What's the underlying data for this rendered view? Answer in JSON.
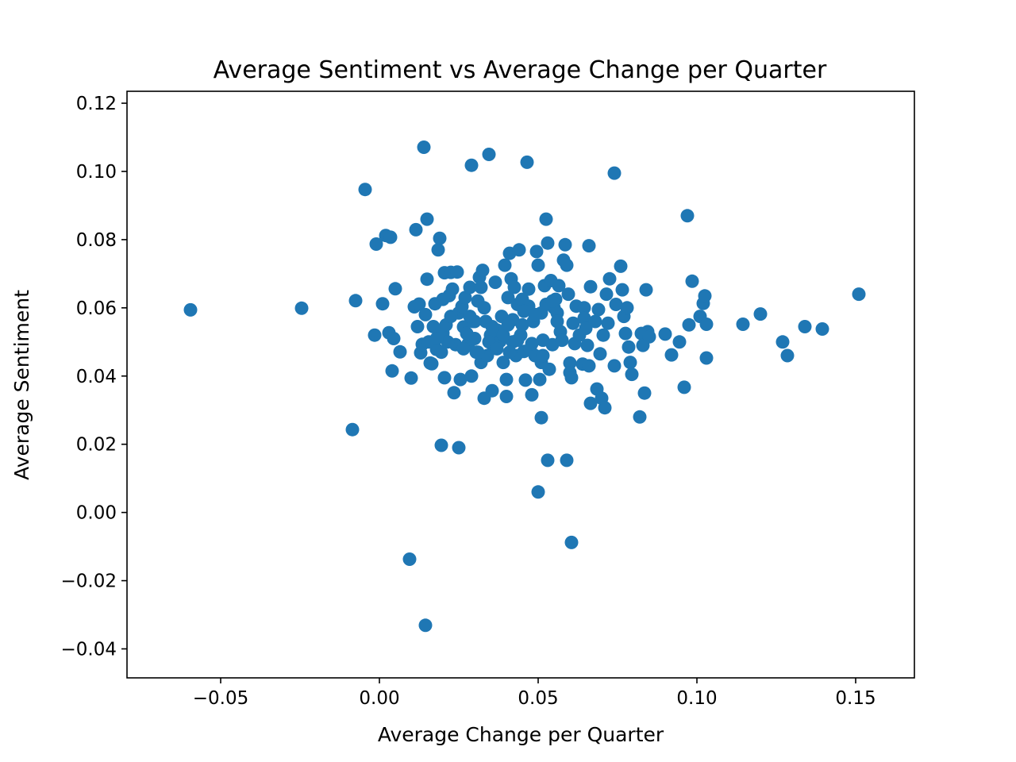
{
  "chart_data": {
    "type": "scatter",
    "title": "Average Sentiment vs Average Change per Quarter",
    "xlabel": "Average Change per Quarter",
    "ylabel": "Average Sentiment",
    "xlim": [
      -0.0795,
      0.1685
    ],
    "ylim": [
      -0.0485,
      0.1235
    ],
    "xticks": [
      -0.05,
      0.0,
      0.05,
      0.1,
      0.15
    ],
    "xtick_labels": [
      "−0.05",
      "0.00",
      "0.05",
      "0.10",
      "0.15"
    ],
    "yticks": [
      -0.04,
      -0.02,
      0.0,
      0.02,
      0.04,
      0.06,
      0.08,
      0.1,
      0.12
    ],
    "ytick_labels": [
      "−0.04",
      "−0.02",
      "0.00",
      "0.02",
      "0.04",
      "0.06",
      "0.08",
      "0.10",
      "0.12"
    ],
    "grid": false,
    "legend": "none",
    "marker_color": "#1f77b4",
    "points": [
      [
        -0.0595,
        0.0594
      ],
      [
        -0.0245,
        0.0599
      ],
      [
        -0.0085,
        0.0243
      ],
      [
        -0.0075,
        0.0621
      ],
      [
        -0.0045,
        0.0947
      ],
      [
        -0.0015,
        0.052
      ],
      [
        -0.001,
        0.0787
      ],
      [
        0.002,
        0.0812
      ],
      [
        0.0035,
        0.0807
      ],
      [
        0.003,
        0.0527
      ],
      [
        0.004,
        0.0415
      ],
      [
        0.0045,
        0.051
      ],
      [
        0.005,
        0.0656
      ],
      [
        0.001,
        0.0612
      ],
      [
        0.0065,
        0.0471
      ],
      [
        0.0095,
        -0.0137
      ],
      [
        0.01,
        0.0394
      ],
      [
        0.011,
        0.0603
      ],
      [
        0.0115,
        0.0829
      ],
      [
        0.012,
        0.0545
      ],
      [
        0.0125,
        0.0611
      ],
      [
        0.013,
        0.0468
      ],
      [
        0.0135,
        0.0493
      ],
      [
        0.014,
        0.1071
      ],
      [
        0.0145,
        -0.0331
      ],
      [
        0.0145,
        0.058
      ],
      [
        0.015,
        0.0684
      ],
      [
        0.015,
        0.086
      ],
      [
        0.016,
        0.0438
      ],
      [
        0.0155,
        0.05
      ],
      [
        0.0165,
        0.0436
      ],
      [
        0.0175,
        0.0612
      ],
      [
        0.018,
        0.0478
      ],
      [
        0.0185,
        0.077
      ],
      [
        0.019,
        0.0804
      ],
      [
        0.0195,
        0.0197
      ],
      [
        0.02,
        0.0526
      ],
      [
        0.0205,
        0.0703
      ],
      [
        0.0205,
        0.0395
      ],
      [
        0.021,
        0.055
      ],
      [
        0.022,
        0.0636
      ],
      [
        0.0225,
        0.0704
      ],
      [
        0.023,
        0.0655
      ],
      [
        0.0235,
        0.0351
      ],
      [
        0.024,
        0.0492
      ],
      [
        0.0245,
        0.0705
      ],
      [
        0.025,
        0.019
      ],
      [
        0.025,
        0.0585
      ],
      [
        0.0255,
        0.039
      ],
      [
        0.026,
        0.0604
      ],
      [
        0.0265,
        0.0544
      ],
      [
        0.027,
        0.063
      ],
      [
        0.028,
        0.0495
      ],
      [
        0.0285,
        0.066
      ],
      [
        0.029,
        0.1018
      ],
      [
        0.029,
        0.04
      ],
      [
        0.0295,
        0.056
      ],
      [
        0.03,
        0.051
      ],
      [
        0.0305,
        0.047
      ],
      [
        0.031,
        0.062
      ],
      [
        0.0315,
        0.069
      ],
      [
        0.032,
        0.044
      ],
      [
        0.0325,
        0.071
      ],
      [
        0.033,
        0.0335
      ],
      [
        0.0335,
        0.056
      ],
      [
        0.034,
        0.046
      ],
      [
        0.0345,
        0.105
      ],
      [
        0.035,
        0.052
      ],
      [
        0.0355,
        0.0357
      ],
      [
        0.036,
        0.0484
      ],
      [
        0.0365,
        0.0675
      ],
      [
        0.037,
        0.0535
      ],
      [
        0.038,
        0.0502
      ],
      [
        0.0385,
        0.0575
      ],
      [
        0.039,
        0.044
      ],
      [
        0.0395,
        0.0725
      ],
      [
        0.04,
        0.034
      ],
      [
        0.04,
        0.039
      ],
      [
        0.0405,
        0.063
      ],
      [
        0.041,
        0.076
      ],
      [
        0.0415,
        0.0685
      ],
      [
        0.042,
        0.05
      ],
      [
        0.0425,
        0.066
      ],
      [
        0.043,
        0.046
      ],
      [
        0.0435,
        0.061
      ],
      [
        0.044,
        0.077
      ],
      [
        0.0445,
        0.052
      ],
      [
        0.045,
        0.0625
      ],
      [
        0.0455,
        0.0472
      ],
      [
        0.046,
        0.0388
      ],
      [
        0.0465,
        0.1027
      ],
      [
        0.047,
        0.0655
      ],
      [
        0.0475,
        0.048
      ],
      [
        0.048,
        0.0345
      ],
      [
        0.0485,
        0.056
      ],
      [
        0.049,
        0.046
      ],
      [
        0.0495,
        0.0765
      ],
      [
        0.05,
        0.006
      ],
      [
        0.05,
        0.0725
      ],
      [
        0.0505,
        0.039
      ],
      [
        0.051,
        0.0278
      ],
      [
        0.051,
        0.044
      ],
      [
        0.0515,
        0.0505
      ],
      [
        0.052,
        0.0665
      ],
      [
        0.0525,
        0.086
      ],
      [
        0.053,
        0.0153
      ],
      [
        0.053,
        0.079
      ],
      [
        0.0535,
        0.042
      ],
      [
        0.054,
        0.068
      ],
      [
        0.0545,
        0.0492
      ],
      [
        0.055,
        0.06
      ],
      [
        0.0555,
        0.0625
      ],
      [
        0.056,
        0.0585
      ],
      [
        0.0565,
        0.0665
      ],
      [
        0.057,
        0.053
      ],
      [
        0.058,
        0.074
      ],
      [
        0.0585,
        0.0785
      ],
      [
        0.059,
        0.0153
      ],
      [
        0.059,
        0.0725
      ],
      [
        0.0595,
        0.064
      ],
      [
        0.06,
        0.0438
      ],
      [
        0.06,
        0.041
      ],
      [
        0.0605,
        0.0395
      ],
      [
        0.0605,
        -0.0088
      ],
      [
        0.061,
        0.0555
      ],
      [
        0.0615,
        0.0495
      ],
      [
        0.062,
        0.0605
      ],
      [
        0.063,
        0.052
      ],
      [
        0.064,
        0.0435
      ],
      [
        0.0645,
        0.06
      ],
      [
        0.0645,
        0.057
      ],
      [
        0.065,
        0.054
      ],
      [
        0.0655,
        0.049
      ],
      [
        0.066,
        0.043
      ],
      [
        0.066,
        0.0782
      ],
      [
        0.0665,
        0.032
      ],
      [
        0.0665,
        0.0662
      ],
      [
        0.068,
        0.056
      ],
      [
        0.0685,
        0.0362
      ],
      [
        0.069,
        0.0595
      ],
      [
        0.0695,
        0.0465
      ],
      [
        0.07,
        0.0335
      ],
      [
        0.0705,
        0.052
      ],
      [
        0.071,
        0.0307
      ],
      [
        0.0715,
        0.064
      ],
      [
        0.072,
        0.0555
      ],
      [
        0.0725,
        0.0685
      ],
      [
        0.074,
        0.043
      ],
      [
        0.074,
        0.0995
      ],
      [
        0.0745,
        0.061
      ],
      [
        0.076,
        0.0722
      ],
      [
        0.0765,
        0.0653
      ],
      [
        0.077,
        0.0575
      ],
      [
        0.0775,
        0.0525
      ],
      [
        0.078,
        0.06
      ],
      [
        0.0785,
        0.0485
      ],
      [
        0.079,
        0.044
      ],
      [
        0.0795,
        0.0405
      ],
      [
        0.082,
        0.028
      ],
      [
        0.0825,
        0.0525
      ],
      [
        0.083,
        0.049
      ],
      [
        0.0835,
        0.035
      ],
      [
        0.084,
        0.0653
      ],
      [
        0.0845,
        0.053
      ],
      [
        0.085,
        0.0515
      ],
      [
        0.09,
        0.0523
      ],
      [
        0.092,
        0.0462
      ],
      [
        0.0945,
        0.05
      ],
      [
        0.096,
        0.0367
      ],
      [
        0.097,
        0.087
      ],
      [
        0.0975,
        0.055
      ],
      [
        0.0985,
        0.0678
      ],
      [
        0.101,
        0.0575
      ],
      [
        0.102,
        0.0613
      ],
      [
        0.1025,
        0.0635
      ],
      [
        0.103,
        0.0453
      ],
      [
        0.103,
        0.0552
      ],
      [
        0.1145,
        0.0552
      ],
      [
        0.12,
        0.0582
      ],
      [
        0.127,
        0.05
      ],
      [
        0.1285,
        0.046
      ],
      [
        0.134,
        0.0545
      ],
      [
        0.1395,
        0.0538
      ],
      [
        0.151,
        0.064
      ],
      [
        0.0215,
        0.05
      ],
      [
        0.0225,
        0.0575
      ],
      [
        0.0265,
        0.048
      ],
      [
        0.0275,
        0.0525
      ],
      [
        0.03,
        0.056
      ],
      [
        0.031,
        0.047
      ],
      [
        0.033,
        0.06
      ],
      [
        0.0345,
        0.05
      ],
      [
        0.0355,
        0.0545
      ],
      [
        0.037,
        0.048
      ],
      [
        0.039,
        0.052
      ],
      [
        0.041,
        0.047
      ],
      [
        0.042,
        0.0565
      ],
      [
        0.0435,
        0.0505
      ],
      [
        0.045,
        0.055
      ],
      [
        0.047,
        0.0605
      ],
      [
        0.048,
        0.0495
      ],
      [
        0.051,
        0.0585
      ],
      [
        0.0525,
        0.061
      ],
      [
        0.056,
        0.056
      ],
      [
        0.017,
        0.0545
      ],
      [
        0.018,
        0.051
      ],
      [
        0.0195,
        0.047
      ],
      [
        0.02,
        0.0625
      ],
      [
        0.0285,
        0.0575
      ],
      [
        0.032,
        0.066
      ],
      [
        0.0405,
        0.055
      ],
      [
        0.0455,
        0.059
      ],
      [
        0.049,
        0.058
      ],
      [
        0.0515,
        0.046
      ],
      [
        0.0545,
        0.062
      ],
      [
        0.0575,
        0.0505
      ]
    ]
  }
}
